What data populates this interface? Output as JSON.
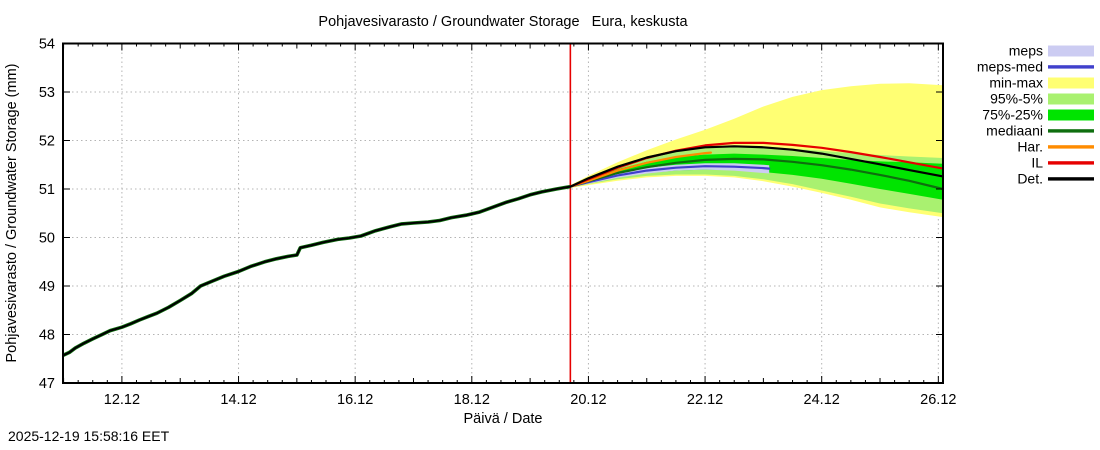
{
  "chart_data": {
    "type": "line",
    "title": "Pohjavesivarasto / Groundwater Storage   Eura, keskusta",
    "xlabel": "Päivä / Date",
    "ylabel": "Pohjavesivarasto / Groundwater Storage (mm)",
    "timestamp": "2025-12-19 15:58:16 EET",
    "ylim": [
      47,
      54
    ],
    "x_range": [
      10.99,
      26.08
    ],
    "grid": true,
    "legend_position": "right-outside",
    "y_ticks": [
      47,
      48,
      49,
      50,
      51,
      52,
      53,
      54
    ],
    "x_ticks": [
      {
        "label": "12.12",
        "day": 12
      },
      {
        "label": "14.12",
        "day": 14
      },
      {
        "label": "16.12",
        "day": 16
      },
      {
        "label": "18.12",
        "day": 18
      },
      {
        "label": "20.12",
        "day": 20
      },
      {
        "label": "22.12",
        "day": 22
      },
      {
        "label": "24.12",
        "day": 24
      },
      {
        "label": "26.12",
        "day": 26
      }
    ],
    "now_line": {
      "day": 19.69,
      "color": "#e60000"
    },
    "observed": {
      "name": "observed",
      "color": "#000000",
      "underlay_color": "#0f6e0f",
      "x": [
        10.99,
        11.1,
        11.2,
        11.35,
        11.5,
        11.66,
        11.8,
        12.0,
        12.15,
        12.3,
        12.45,
        12.6,
        12.8,
        13.0,
        13.2,
        13.35,
        13.55,
        13.75,
        14.0,
        14.2,
        14.45,
        14.65,
        14.85,
        15.0,
        15.06,
        15.25,
        15.45,
        15.7,
        15.9,
        16.1,
        16.35,
        16.6,
        16.8,
        17.0,
        17.25,
        17.45,
        17.65,
        17.9,
        18.12,
        18.35,
        18.6,
        18.8,
        19.0,
        19.2,
        19.45,
        19.6,
        19.69
      ],
      "y": [
        47.57,
        47.63,
        47.72,
        47.82,
        47.91,
        48.0,
        48.08,
        48.15,
        48.22,
        48.3,
        48.37,
        48.44,
        48.56,
        48.7,
        48.85,
        49.0,
        49.1,
        49.2,
        49.3,
        49.4,
        49.5,
        49.56,
        49.61,
        49.64,
        49.79,
        49.84,
        49.9,
        49.96,
        49.99,
        50.03,
        50.14,
        50.22,
        50.28,
        50.3,
        50.32,
        50.35,
        50.41,
        50.46,
        50.52,
        50.62,
        50.73,
        50.8,
        50.88,
        50.94,
        51.0,
        51.03,
        51.05
      ]
    },
    "bands": [
      {
        "name": "min-max",
        "color": "#ffff73",
        "x": [
          19.69,
          20.0,
          20.5,
          21.0,
          21.5,
          22.0,
          22.5,
          23.0,
          23.5,
          24.0,
          24.5,
          25.0,
          25.5,
          26.08
        ],
        "upper": [
          51.08,
          51.27,
          51.55,
          51.8,
          52.02,
          52.22,
          52.45,
          52.7,
          52.9,
          53.04,
          53.12,
          53.17,
          53.18,
          53.14
        ],
        "lower": [
          51.02,
          51.08,
          51.17,
          51.24,
          51.27,
          51.27,
          51.24,
          51.16,
          51.05,
          50.92,
          50.78,
          50.62,
          50.52,
          50.42
        ]
      },
      {
        "name": "95%-5%",
        "color": "#a9f170",
        "x": [
          19.69,
          20.0,
          20.5,
          21.0,
          21.5,
          22.0,
          22.5,
          23.0,
          23.5,
          24.0,
          24.5,
          25.0,
          25.5,
          26.08
        ],
        "upper": [
          51.07,
          51.24,
          51.48,
          51.67,
          51.79,
          51.85,
          51.87,
          51.86,
          51.83,
          51.79,
          51.74,
          51.7,
          51.67,
          51.64
        ],
        "lower": [
          51.03,
          51.1,
          51.2,
          51.27,
          51.3,
          51.3,
          51.27,
          51.2,
          51.1,
          50.97,
          50.84,
          50.7,
          50.6,
          50.5
        ]
      },
      {
        "name": "75%-25%",
        "color": "#00e400",
        "x": [
          19.69,
          20.0,
          20.5,
          21.0,
          21.5,
          22.0,
          22.5,
          23.0,
          23.5,
          24.0,
          24.5,
          25.0,
          25.5,
          26.08
        ],
        "upper": [
          51.06,
          51.2,
          51.41,
          51.56,
          51.66,
          51.71,
          51.73,
          51.71,
          51.68,
          51.64,
          51.6,
          51.57,
          51.55,
          51.52
        ],
        "lower": [
          51.04,
          51.12,
          51.25,
          51.33,
          51.38,
          51.4,
          51.39,
          51.35,
          51.29,
          51.21,
          51.11,
          51.0,
          50.9,
          50.78
        ]
      },
      {
        "name": "meps",
        "color": "#ccccf2",
        "x": [
          19.69,
          20.0,
          20.5,
          21.0,
          21.5,
          22.0,
          22.5,
          23.0,
          23.1
        ],
        "upper": [
          51.06,
          51.17,
          51.33,
          51.44,
          51.5,
          51.53,
          51.53,
          51.5,
          51.49
        ],
        "lower": [
          51.04,
          51.11,
          51.23,
          51.32,
          51.38,
          51.4,
          51.38,
          51.33,
          51.32
        ]
      }
    ],
    "lines": [
      {
        "name": "meps-med",
        "color": "#4040cc",
        "width": 2.2,
        "x": [
          19.69,
          20.0,
          20.5,
          21.0,
          21.5,
          22.0,
          22.5,
          23.0,
          23.1
        ],
        "y": [
          51.05,
          51.14,
          51.28,
          51.38,
          51.44,
          51.47,
          51.46,
          51.43,
          51.42
        ]
      },
      {
        "name": "mediaani",
        "color": "#0f6e0f",
        "width": 2.2,
        "x": [
          19.69,
          20.0,
          20.5,
          21.0,
          21.5,
          22.0,
          22.5,
          23.0,
          23.5,
          24.0,
          24.5,
          25.0,
          25.5,
          26.08
        ],
        "y": [
          51.05,
          51.16,
          51.33,
          51.45,
          51.54,
          51.6,
          51.62,
          51.61,
          51.56,
          51.49,
          51.4,
          51.29,
          51.17,
          51.0
        ]
      },
      {
        "name": "Har.",
        "color": "#ff8c00",
        "width": 2.2,
        "x": [
          19.69,
          20.0,
          20.5,
          21.0,
          21.5,
          22.0,
          22.1
        ],
        "y": [
          51.05,
          51.17,
          51.38,
          51.54,
          51.66,
          51.74,
          51.75
        ]
      },
      {
        "name": "IL",
        "color": "#e60000",
        "width": 2.2,
        "x": [
          19.69,
          20.0,
          20.5,
          21.0,
          21.5,
          22.0,
          22.5,
          23.0,
          23.5,
          24.0,
          24.5,
          25.0,
          25.5,
          26.08
        ],
        "y": [
          51.05,
          51.2,
          51.44,
          51.64,
          51.79,
          51.9,
          51.95,
          51.95,
          51.91,
          51.85,
          51.76,
          51.66,
          51.55,
          51.42
        ]
      },
      {
        "name": "Det.",
        "color": "#000000",
        "width": 2.2,
        "x": [
          19.69,
          20.0,
          20.5,
          21.0,
          21.5,
          22.0,
          22.5,
          23.0,
          23.5,
          24.0,
          24.5,
          25.0,
          25.5,
          26.08
        ],
        "y": [
          51.05,
          51.22,
          51.46,
          51.65,
          51.78,
          51.86,
          51.88,
          51.86,
          51.81,
          51.73,
          51.62,
          51.51,
          51.39,
          51.26
        ]
      }
    ],
    "legend": [
      {
        "label": "meps",
        "type": "band",
        "color": "#ccccf2"
      },
      {
        "label": "meps-med",
        "type": "line",
        "color": "#4040cc"
      },
      {
        "label": "min-max",
        "type": "band",
        "color": "#ffff73"
      },
      {
        "label": "95%-5%",
        "type": "band",
        "color": "#a9f170"
      },
      {
        "label": "75%-25%",
        "type": "band",
        "color": "#00e400"
      },
      {
        "label": "mediaani",
        "type": "line",
        "color": "#0f6e0f"
      },
      {
        "label": "Har.",
        "type": "line",
        "color": "#ff8c00"
      },
      {
        "label": "IL",
        "type": "line",
        "color": "#e60000"
      },
      {
        "label": "Det.",
        "type": "line",
        "color": "#000000"
      }
    ],
    "style": {
      "grid_color": "#b4b4b4",
      "border_color": "#000000",
      "background": "#ffffff"
    }
  }
}
